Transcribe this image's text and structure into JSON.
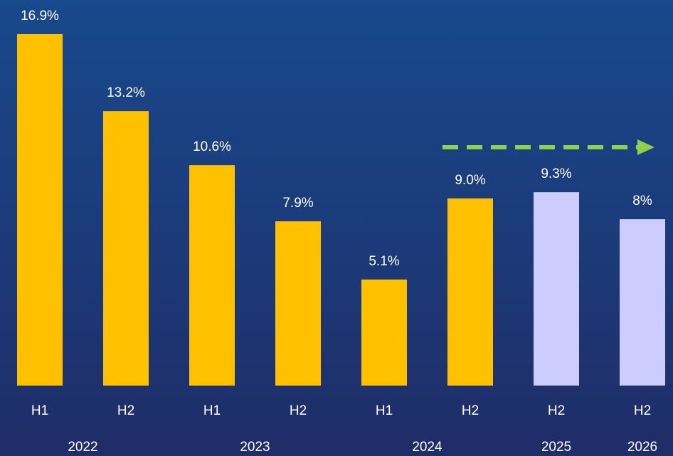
{
  "chart_data": {
    "type": "bar",
    "groups": [
      {
        "name": "2022",
        "categories": [
          "H1",
          "H2"
        ],
        "values": [
          16.9,
          13.2
        ],
        "value_labels": [
          "16.9%",
          "13.2%"
        ],
        "color": "#ffc000"
      },
      {
        "name": "2023",
        "categories": [
          "H1",
          "H2"
        ],
        "values": [
          10.6,
          7.9
        ],
        "value_labels": [
          "10.6%",
          "7.9%"
        ],
        "color": "#ffc000"
      },
      {
        "name": "2024",
        "categories": [
          "H1",
          "H2"
        ],
        "values": [
          5.1,
          9.0
        ],
        "value_labels": [
          "5.1%",
          "9.0%"
        ],
        "color": "#ffc000"
      },
      {
        "name": "2025",
        "categories": [
          "H2"
        ],
        "values": [
          9.3
        ],
        "value_labels": [
          "9.3%"
        ],
        "color": "#ccccff"
      },
      {
        "name": "2026",
        "categories": [
          "H2"
        ],
        "values": [
          8
        ],
        "value_labels": [
          "8%"
        ],
        "color": "#ccccff"
      }
    ]
  }
}
